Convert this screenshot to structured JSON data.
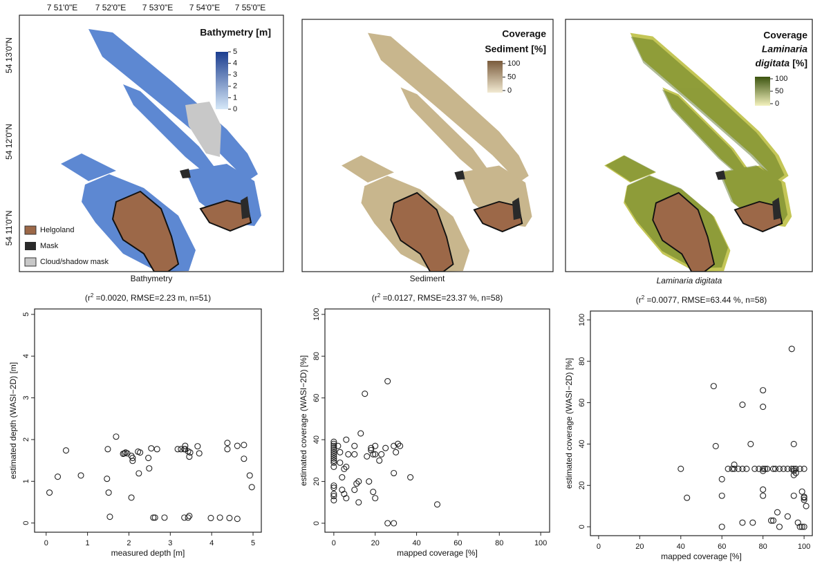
{
  "maps": [
    {
      "title": [
        "Bathymetry [m]"
      ],
      "caption": "Bathymetry",
      "colorbar": {
        "lim": [
          0,
          5
        ],
        "ticks": [
          0,
          1,
          2,
          3,
          4,
          5
        ]
      },
      "legend": [
        "Helgoland",
        "Mask",
        "Cloud/shadow mask"
      ],
      "lon_labels": [
        "7 51'0\"E",
        "7 52'0\"E",
        "7 53'0\"E",
        "7 54'0\"E",
        "7 55'0\"E"
      ],
      "lat_labels": [
        "54 13'0\"N",
        "54 12'0\"N",
        "54 11'0\"N"
      ]
    },
    {
      "title": [
        "Coverage",
        "Sediment [%]"
      ],
      "caption": "Sediment",
      "colorbar": {
        "lim": [
          0,
          100
        ],
        "ticks": [
          0,
          50,
          100
        ]
      }
    },
    {
      "title": [
        "Coverage",
        "Laminaria",
        "digitata",
        "[%]"
      ],
      "caption": "Laminaria digitata",
      "colorbar": {
        "lim": [
          0,
          100
        ],
        "ticks": [
          0,
          50,
          100
        ]
      }
    }
  ],
  "chart_data": [
    {
      "type": "scatter",
      "subtitle": [
        "(r",
        "2",
        " =0.0020, RMSE=2.23 m, n=51)"
      ],
      "xlabel": "measured depth [m]",
      "ylabel": "estimated depth (WASI−2D) [m]",
      "color": "#222222",
      "xlim": [
        -0.28,
        5.2
      ],
      "ylim": [
        -0.22,
        5.13
      ],
      "xticks": [
        0,
        1,
        2,
        3,
        4,
        5
      ],
      "yticks": [
        0,
        1,
        2,
        3,
        4,
        5
      ],
      "x": [
        0.08,
        0.28,
        0.48,
        0.84,
        1.47,
        1.49,
        1.51,
        1.54,
        1.69,
        1.86,
        1.89,
        1.92,
        1.96,
        2.06,
        2.09,
        2.09,
        2.22,
        2.24,
        2.47,
        2.49,
        2.54,
        2.59,
        2.63,
        2.68,
        2.86,
        3.18,
        3.26,
        3.34,
        3.36,
        3.36,
        3.34,
        3.43,
        3.46,
        3.46,
        3.66,
        3.7,
        3.98,
        4.2,
        4.38,
        4.38,
        4.43,
        4.62,
        4.62,
        4.78,
        4.78,
        4.92,
        4.97,
        3.43,
        2.27,
        3.48,
        2.06
      ],
      "y": [
        0.73,
        1.11,
        1.74,
        1.14,
        1.06,
        1.77,
        0.73,
        0.15,
        2.07,
        1.66,
        1.67,
        1.69,
        1.67,
        0.61,
        1.56,
        1.49,
        1.71,
        1.19,
        1.56,
        1.31,
        1.79,
        0.13,
        0.13,
        1.77,
        0.13,
        1.77,
        1.77,
        1.77,
        1.85,
        1.77,
        0.13,
        0.13,
        1.59,
        0.17,
        1.84,
        1.67,
        0.12,
        0.13,
        1.92,
        1.77,
        0.12,
        1.85,
        0.1,
        1.87,
        1.54,
        1.14,
        0.86,
        1.72,
        1.69,
        1.69,
        1.61
      ]
    },
    {
      "type": "scatter",
      "subtitle": [
        "(r",
        "2",
        " =0.0127, RMSE=23.37 %, n=58)"
      ],
      "xlabel": "mapped coverage [%]",
      "ylabel": "estimated coverage (WASI−2D) [%]",
      "color": "#222222",
      "xlim": [
        -4.3,
        104.3
      ],
      "ylim": [
        -4.3,
        102.6
      ],
      "xticks": [
        0,
        20,
        40,
        60,
        80,
        100
      ],
      "yticks": [
        0,
        20,
        40,
        60,
        80,
        100
      ],
      "x": [
        0,
        0,
        0,
        0,
        0,
        0,
        0,
        0,
        0,
        0,
        0,
        0,
        0,
        0,
        0,
        0,
        0,
        2,
        3,
        3,
        4,
        4,
        5,
        6,
        5,
        6,
        6,
        7,
        10,
        10,
        10,
        11,
        12,
        13,
        12,
        15,
        16,
        17,
        18,
        18,
        19,
        19,
        20,
        20,
        20,
        22,
        23,
        25,
        26,
        26,
        29,
        29,
        29,
        30,
        31,
        32,
        37,
        50
      ],
      "y": [
        11,
        13,
        14,
        17,
        18,
        27,
        29,
        30,
        31,
        32,
        33,
        34,
        35,
        36,
        37,
        38,
        39,
        37,
        34,
        29,
        22,
        16,
        14,
        12,
        26,
        27,
        40,
        33,
        37,
        33,
        16,
        19,
        10,
        43,
        20,
        62,
        32,
        20,
        35,
        36,
        33,
        15,
        12,
        33,
        37,
        30,
        33,
        36,
        68,
        0,
        0,
        37,
        24,
        34,
        38,
        37,
        22,
        9
      ]
    },
    {
      "type": "scatter",
      "subtitle": [
        "(r",
        "2",
        " =0.0077, RMSE=63.44 %, n=58)"
      ],
      "xlabel": "mapped coverage [%]",
      "ylabel": "estimated coverage (WASI−2D) [%]",
      "color": "#222222",
      "xlim": [
        -4,
        104
      ],
      "ylim": [
        -4.3,
        104.3
      ],
      "xticks": [
        0,
        20,
        40,
        60,
        80,
        100
      ],
      "yticks": [
        0,
        20,
        40,
        60,
        80,
        100
      ],
      "x": [
        40,
        43,
        56,
        57,
        60,
        60,
        60,
        65,
        66,
        66,
        70,
        70,
        70,
        74,
        75,
        76,
        80,
        80,
        80,
        80,
        80,
        80,
        81,
        84,
        85,
        87,
        88,
        90,
        92,
        94,
        95,
        95,
        95,
        95,
        96,
        95,
        97,
        98,
        99,
        100,
        100,
        100,
        101,
        100,
        63,
        68,
        72,
        78,
        82,
        86,
        88,
        94,
        96,
        98,
        100,
        92,
        85,
        99
      ],
      "y": [
        28,
        14,
        68,
        39,
        23,
        15,
        0,
        28,
        28,
        30,
        59,
        28,
        2,
        40,
        2,
        28,
        66,
        58,
        28,
        27,
        18,
        15,
        28,
        3,
        28,
        7,
        0,
        28,
        28,
        86,
        40,
        28,
        27,
        25,
        28,
        15,
        2,
        0,
        0,
        28,
        14,
        13,
        10,
        0,
        28,
        28,
        28,
        28,
        28,
        28,
        28,
        28,
        26,
        28,
        14.5,
        5,
        3,
        17
      ]
    }
  ]
}
